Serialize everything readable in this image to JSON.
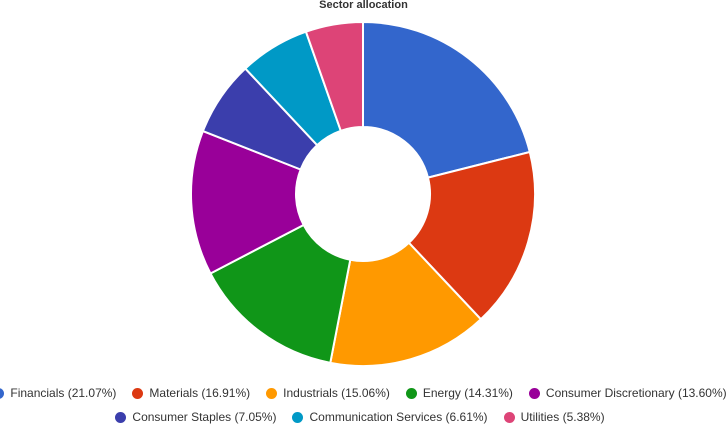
{
  "chart_data": {
    "type": "pie",
    "title": "Sector allocation",
    "donut": true,
    "legend_position": "bottom",
    "categories": [
      "Financials",
      "Materials",
      "Industrials",
      "Energy",
      "Consumer Discretionary",
      "Consumer Staples",
      "Communication Services",
      "Utilities"
    ],
    "values": [
      21.07,
      16.91,
      15.06,
      14.31,
      13.6,
      7.05,
      6.61,
      5.38
    ],
    "colors": [
      "#3366cc",
      "#dc3912",
      "#ff9900",
      "#109618",
      "#990099",
      "#3b3eac",
      "#0099c6",
      "#dd4477"
    ],
    "legend_labels": [
      "Financials (21.07%)",
      "Materials (16.91%)",
      "Industrials (15.06%)",
      "Energy (14.31%)",
      "Consumer Discretionary (13.60%)",
      "Consumer Staples (7.05%)",
      "Communication Services (6.61%)",
      "Utilities (5.38%)"
    ]
  }
}
